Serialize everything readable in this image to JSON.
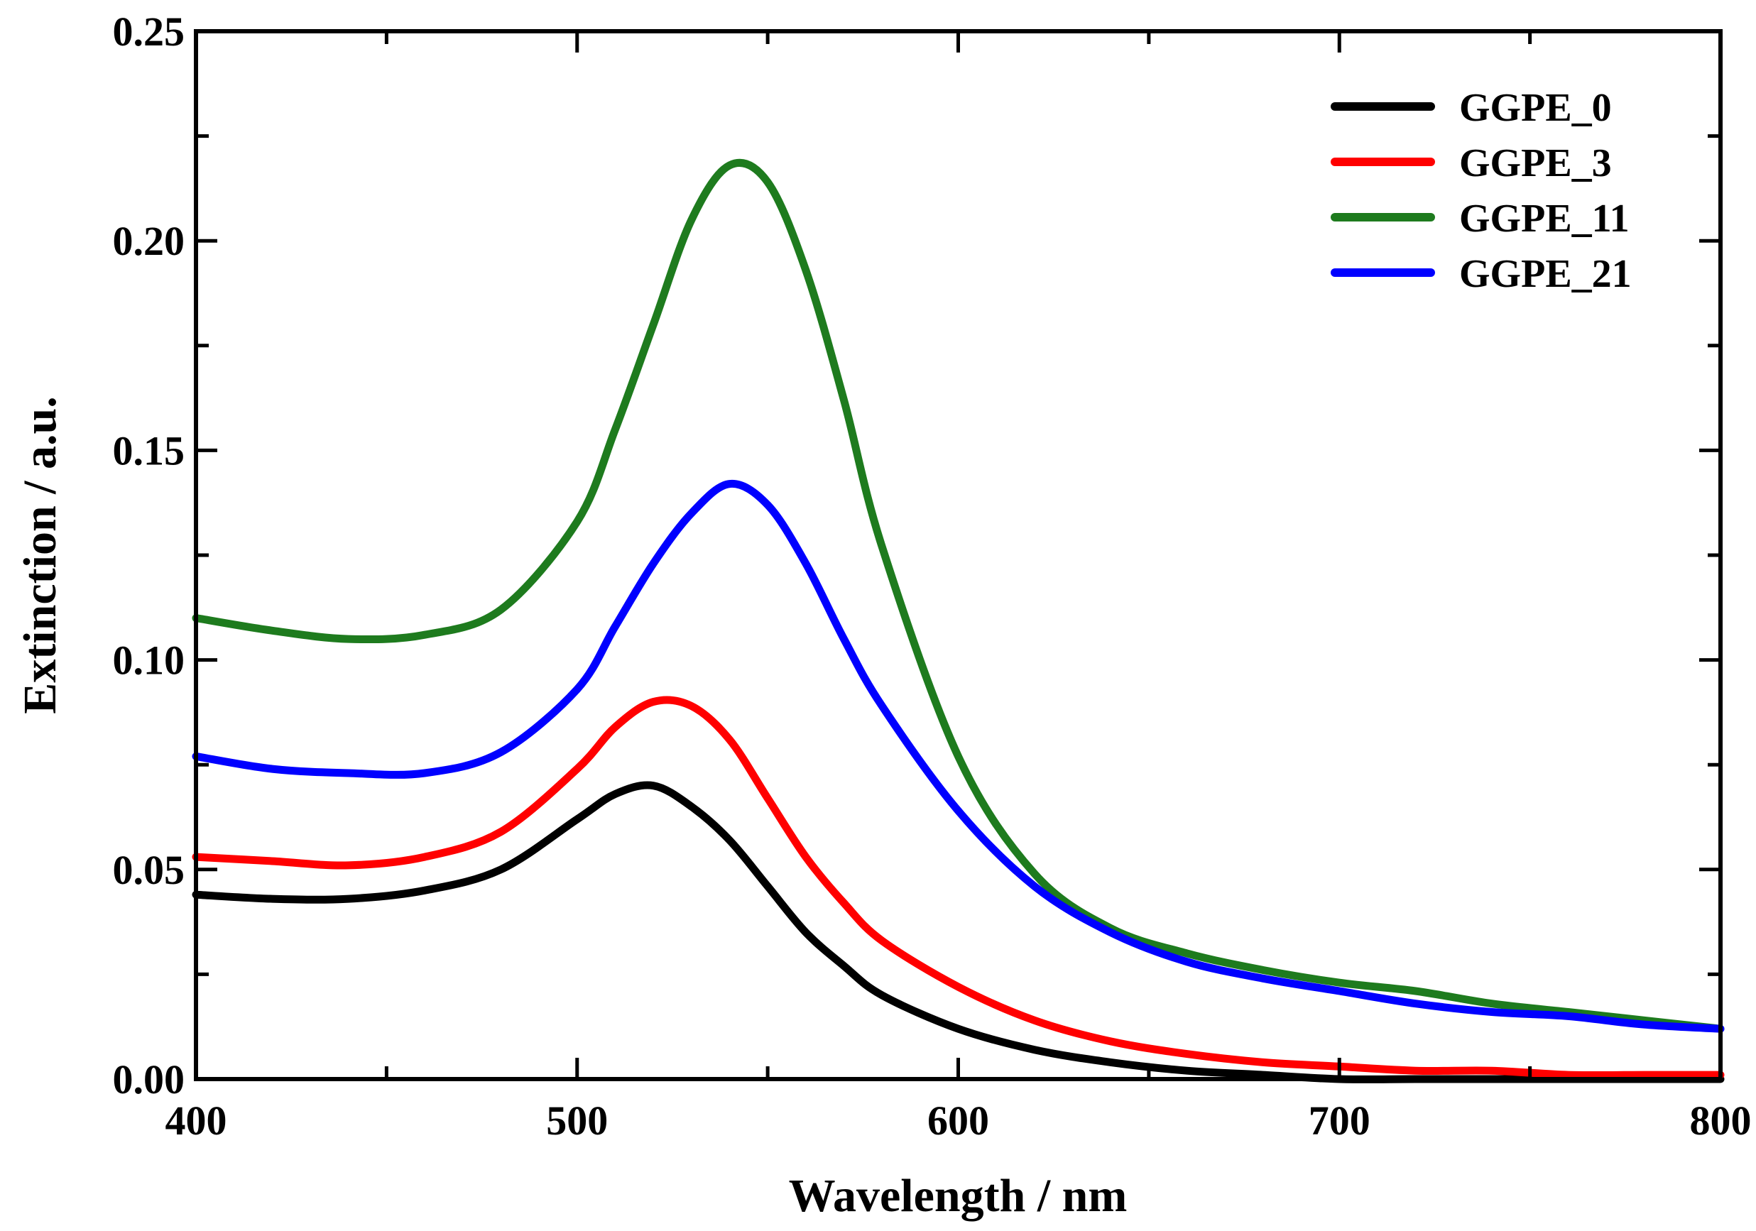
{
  "chart_data": {
    "type": "line",
    "title": "",
    "xlabel": "Wavelength / nm",
    "ylabel": "Extinction / a.u.",
    "xlim": [
      400,
      800
    ],
    "ylim": [
      0,
      0.25
    ],
    "xticks": [
      "400",
      "500",
      "600",
      "700",
      "800"
    ],
    "yticks": [
      "0.00",
      "0.05",
      "0.10",
      "0.15",
      "0.20",
      "0.25"
    ],
    "legend_position": "top-right",
    "x": [
      400,
      420,
      440,
      460,
      480,
      500,
      510,
      520,
      530,
      540,
      550,
      560,
      570,
      580,
      600,
      620,
      640,
      660,
      680,
      700,
      720,
      740,
      760,
      780,
      800
    ],
    "series": [
      {
        "name": "GGPE_0",
        "color": "#000000",
        "values": [
          0.044,
          0.043,
          0.043,
          0.045,
          0.05,
          0.062,
          0.068,
          0.07,
          0.065,
          0.057,
          0.046,
          0.035,
          0.027,
          0.02,
          0.012,
          0.007,
          0.004,
          0.002,
          0.001,
          0.0,
          0.0,
          0.0,
          0.0,
          0.0,
          0.0
        ]
      },
      {
        "name": "GGPE_3",
        "color": "#ff0000",
        "values": [
          0.053,
          0.052,
          0.051,
          0.053,
          0.059,
          0.074,
          0.084,
          0.09,
          0.089,
          0.081,
          0.067,
          0.053,
          0.042,
          0.033,
          0.022,
          0.014,
          0.009,
          0.006,
          0.004,
          0.003,
          0.002,
          0.002,
          0.001,
          0.001,
          0.001
        ]
      },
      {
        "name": "GGPE_11",
        "color": "#1e7b1e",
        "values": [
          0.11,
          0.107,
          0.105,
          0.106,
          0.112,
          0.133,
          0.155,
          0.18,
          0.205,
          0.218,
          0.214,
          0.193,
          0.162,
          0.127,
          0.077,
          0.049,
          0.036,
          0.03,
          0.026,
          0.023,
          0.021,
          0.018,
          0.016,
          0.014,
          0.012
        ]
      },
      {
        "name": "GGPE_21",
        "color": "#0000ff",
        "values": [
          0.077,
          0.074,
          0.073,
          0.073,
          0.078,
          0.093,
          0.108,
          0.123,
          0.135,
          0.142,
          0.137,
          0.123,
          0.105,
          0.089,
          0.064,
          0.046,
          0.035,
          0.028,
          0.024,
          0.021,
          0.018,
          0.016,
          0.015,
          0.013,
          0.012
        ]
      }
    ]
  }
}
